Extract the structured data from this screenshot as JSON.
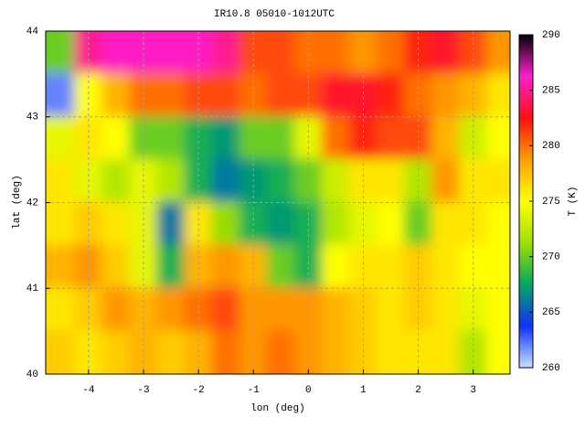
{
  "chart_data": {
    "type": "heatmap",
    "title": "IR10.8 05010-1012UTC",
    "x_label": "lon (deg)",
    "y_label": "lat (deg)",
    "colorbar_label": "T (K)",
    "x": [
      -4.5,
      -4,
      -3.5,
      -3,
      -2.5,
      -2,
      -1.5,
      -1,
      -0.5,
      0,
      0.5,
      1,
      1.5,
      2,
      2.5,
      3,
      3.5
    ],
    "y": [
      43.75,
      43.25,
      42.75,
      42.25,
      41.75,
      41.25,
      40.75,
      40.25
    ],
    "z": [
      [
        270,
        285,
        286,
        286,
        286,
        286,
        285,
        281,
        281,
        280,
        280,
        279,
        280,
        282,
        283,
        281,
        279
      ],
      [
        262,
        275,
        278,
        280,
        280,
        281,
        281,
        280,
        281,
        281,
        283,
        283,
        282,
        280,
        279,
        278,
        276
      ],
      [
        274,
        276,
        275,
        270,
        270,
        268,
        267,
        270,
        270,
        274,
        280,
        282,
        281,
        281,
        278,
        273,
        275
      ],
      [
        276,
        274,
        272,
        274,
        272,
        268,
        266,
        267,
        268,
        270,
        273,
        276,
        276,
        272,
        279,
        276,
        276
      ],
      [
        276,
        277,
        276,
        274,
        266,
        276,
        271,
        268,
        267,
        268,
        272,
        274,
        275,
        270,
        276,
        276,
        275
      ],
      [
        278,
        279,
        277,
        274,
        268,
        278,
        279,
        278,
        270,
        268,
        275,
        276,
        276,
        277,
        276,
        275,
        275
      ],
      [
        276,
        277,
        279,
        278,
        279,
        280,
        281,
        279,
        279,
        279,
        278,
        277,
        276,
        277,
        276,
        274,
        275
      ],
      [
        277,
        276,
        277,
        278,
        277,
        278,
        280,
        279,
        280,
        279,
        278,
        277,
        276,
        276,
        276,
        272,
        275
      ]
    ],
    "xlim": [
      -4.78,
      3.67
    ],
    "ylim": [
      40,
      44
    ],
    "xticks": [
      -4,
      -3,
      -2,
      -1,
      0,
      1,
      2,
      3
    ],
    "yticks": [
      40,
      41,
      42,
      43,
      44
    ],
    "zlim": [
      260,
      290
    ],
    "zticks": [
      260,
      265,
      270,
      275,
      280,
      285,
      290
    ],
    "colormap": [
      "#c8e0ff",
      "#1030ff",
      "#00a860",
      "#a0e000",
      "#ffff00",
      "#ffa000",
      "#ff1010",
      "#ff20d0",
      "#000000"
    ],
    "grid": true
  }
}
